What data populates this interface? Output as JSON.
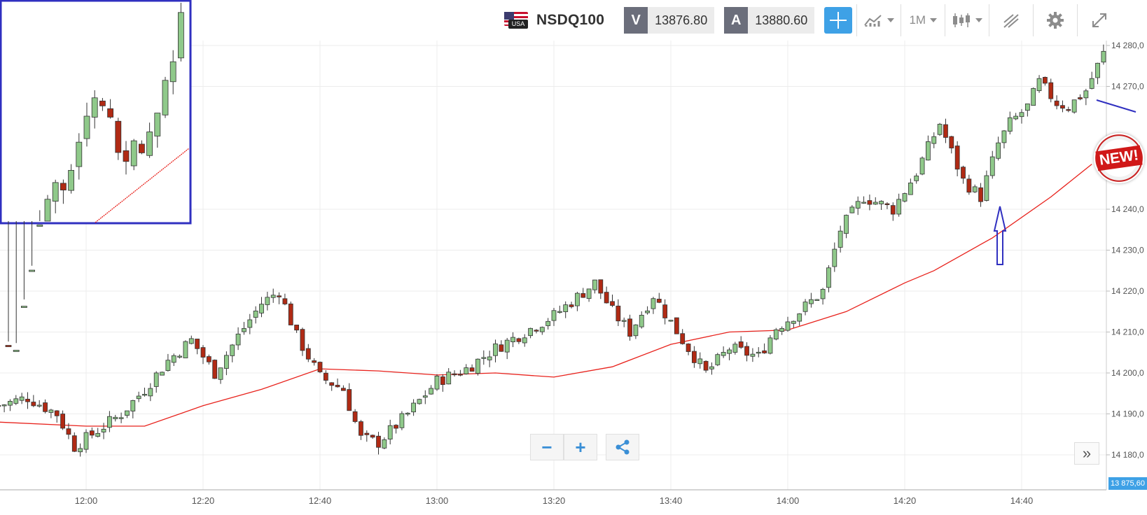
{
  "instrument": {
    "symbol": "NSDQ100",
    "flag_label": "USA"
  },
  "quotes": {
    "sell_label": "V",
    "sell_price": "13876.80",
    "buy_label": "A",
    "buy_price": "13880.60"
  },
  "toolbar": {
    "timeframe": "1M"
  },
  "current_price": "13 875,60",
  "badge_text": "NEW!",
  "colors": {
    "up": "#8fc98a",
    "down": "#b02a14",
    "ma": "#e8221c",
    "annotation": "#3030c0",
    "accent": "#3ea1e6"
  },
  "icons": [
    "chart-type-icon",
    "candlestick-icon",
    "drawing-tools-icon",
    "gear-icon",
    "fullscreen-icon",
    "crosshair-icon",
    "share-icon",
    "zoom-out-icon",
    "zoom-in-icon",
    "forward-icon"
  ],
  "chart_data": {
    "type": "candlestick",
    "title": "",
    "xlabel": "",
    "ylabel": "",
    "interval": "1 minute",
    "time_range": [
      "11:45",
      "14:54"
    ],
    "x_ticks": [
      "12:00",
      "12:20",
      "12:40",
      "13:00",
      "13:20",
      "13:40",
      "14:00",
      "14:20",
      "14:40"
    ],
    "y_ticks": [
      "14 180,0",
      "14 190,0",
      "14 200,0",
      "14 210,0",
      "14 220,0",
      "14 230,0",
      "14 240,0",
      "14 270,0",
      "14 280,0"
    ],
    "ylim": [
      14175,
      14282
    ],
    "grid": true,
    "close_path": [
      [
        "11:45",
        14192
      ],
      [
        "11:50",
        14194
      ],
      [
        "11:55",
        14190
      ],
      [
        "11:58",
        14182
      ],
      [
        "12:02",
        14186
      ],
      [
        "12:06",
        14190
      ],
      [
        "12:10",
        14196
      ],
      [
        "12:14",
        14203
      ],
      [
        "12:18",
        14208
      ],
      [
        "12:22",
        14200
      ],
      [
        "12:26",
        14209
      ],
      [
        "12:30",
        14217
      ],
      [
        "12:33",
        14220
      ],
      [
        "12:36",
        14209
      ],
      [
        "12:40",
        14199
      ],
      [
        "12:44",
        14196
      ],
      [
        "12:47",
        14184
      ],
      [
        "12:50",
        14183
      ],
      [
        "12:55",
        14190
      ],
      [
        "13:00",
        14198
      ],
      [
        "13:05",
        14201
      ],
      [
        "13:10",
        14206
      ],
      [
        "13:15",
        14210
      ],
      [
        "13:20",
        14214
      ],
      [
        "13:27",
        14222
      ],
      [
        "13:30",
        14215
      ],
      [
        "13:33",
        14210
      ],
      [
        "13:37",
        14219
      ],
      [
        "13:42",
        14208
      ],
      [
        "13:46",
        14200
      ],
      [
        "13:50",
        14206
      ],
      [
        "13:55",
        14204
      ],
      [
        "13:58",
        14211
      ],
      [
        "14:02",
        14215
      ],
      [
        "14:06",
        14220
      ],
      [
        "14:09",
        14235
      ],
      [
        "14:13",
        14243
      ],
      [
        "14:18",
        14240
      ],
      [
        "14:22",
        14249
      ],
      [
        "14:26",
        14261
      ],
      [
        "14:30",
        14247
      ],
      [
        "14:33",
        14243
      ],
      [
        "14:36",
        14256
      ],
      [
        "14:38",
        14261
      ],
      [
        "14:41",
        14265
      ],
      [
        "14:43",
        14271
      ],
      [
        "14:46",
        14266
      ],
      [
        "14:48",
        14265
      ],
      [
        "14:51",
        14269
      ],
      [
        "14:54",
        14278
      ]
    ],
    "moving_average": [
      [
        "11:45",
        14188
      ],
      [
        "12:00",
        14187
      ],
      [
        "12:10",
        14187
      ],
      [
        "12:20",
        14192
      ],
      [
        "12:30",
        14196
      ],
      [
        "12:40",
        14201
      ],
      [
        "12:50",
        14200.5
      ],
      [
        "13:00",
        14199.5
      ],
      [
        "13:10",
        14200
      ],
      [
        "13:20",
        14199
      ],
      [
        "13:30",
        14201.5
      ],
      [
        "13:40",
        14207
      ],
      [
        "13:50",
        14210
      ],
      [
        "14:00",
        14210.5
      ],
      [
        "14:10",
        14215
      ],
      [
        "14:20",
        14222
      ],
      [
        "14:25",
        14225
      ],
      [
        "14:35",
        14233
      ],
      [
        "14:45",
        14243
      ],
      [
        "14:52",
        14251
      ]
    ]
  }
}
